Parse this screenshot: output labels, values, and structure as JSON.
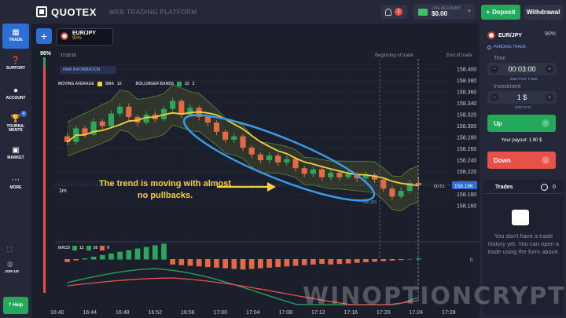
{
  "header": {
    "logo": "QUOTEX",
    "subtitle": "WEB TRADING PLATFORM",
    "notif_count": "1",
    "account_label": "LIVE ACCOUNT",
    "account_value": "$0.00",
    "deposit_label": "Deposit",
    "withdraw_label": "Withdrawal"
  },
  "sidebar": {
    "items": [
      {
        "label": "TRADE",
        "icon": "chart-icon"
      },
      {
        "label": "SUPPORT",
        "icon": "question-icon"
      },
      {
        "label": "ACCOUNT",
        "icon": "user-icon"
      },
      {
        "label": "TOURNA-\nMENTS",
        "icon": "trophy-icon"
      },
      {
        "label": "MARKET",
        "icon": "market-icon"
      },
      {
        "label": "MORE",
        "icon": "more-icon"
      }
    ],
    "tournaments_badge": "4",
    "join_label": "JOIN US",
    "help_label": "Help"
  },
  "chart": {
    "asset_name": "EUR/JPY",
    "asset_pct": "90%",
    "pct_left": "96%",
    "time_label": "17:23:10",
    "pair_info": "PAIR INFORMATION",
    "indicators": [
      "MOVING AVERAGE",
      "SMA",
      "10",
      "BOLLINGER BANDS",
      "22",
      "2"
    ],
    "macd_label": "MACD",
    "macd_values": [
      "12",
      "26",
      "9"
    ],
    "timeframe": "1m",
    "annotation": "The trend is moving with almost no pullbacks.",
    "beginning_label": "Beginning of trade",
    "end_label": "End of trade",
    "current_time": "00:51",
    "current_price": "158.196",
    "marker_price": "158.183",
    "colors": {
      "up": "#2ea55d",
      "down": "#e36a45",
      "sma": "#f2d13a",
      "ellipse": "#3a9be8",
      "annot": "#f4d03f"
    }
  },
  "chart_data": {
    "type": "candlestick",
    "price_ticks": [
      "158.400",
      "158.380",
      "158.360",
      "158.340",
      "158.320",
      "158.300",
      "158.280",
      "158.260",
      "158.240",
      "158.220",
      "158.200",
      "158.180",
      "158.160"
    ],
    "time_ticks": [
      "16:40",
      "16:44",
      "16:48",
      "16:52",
      "16:56",
      "17:00",
      "17:04",
      "17:08",
      "17:12",
      "17:16",
      "17:20",
      "17:24",
      "17:28"
    ],
    "candles": [
      {
        "o": 158.282,
        "c": 158.272,
        "h": 158.288,
        "l": 158.266
      },
      {
        "o": 158.272,
        "c": 158.296,
        "h": 158.3,
        "l": 158.268
      },
      {
        "o": 158.296,
        "c": 158.285,
        "h": 158.3,
        "l": 158.28
      },
      {
        "o": 158.285,
        "c": 158.308,
        "h": 158.314,
        "l": 158.282
      },
      {
        "o": 158.308,
        "c": 158.3,
        "h": 158.312,
        "l": 158.294
      },
      {
        "o": 158.3,
        "c": 158.322,
        "h": 158.328,
        "l": 158.296
      },
      {
        "o": 158.322,
        "c": 158.334,
        "h": 158.34,
        "l": 158.316
      },
      {
        "o": 158.334,
        "c": 158.316,
        "h": 158.34,
        "l": 158.31
      },
      {
        "o": 158.316,
        "c": 158.306,
        "h": 158.32,
        "l": 158.3
      },
      {
        "o": 158.306,
        "c": 158.32,
        "h": 158.326,
        "l": 158.302
      },
      {
        "o": 158.32,
        "c": 158.312,
        "h": 158.326,
        "l": 158.306
      },
      {
        "o": 158.312,
        "c": 158.33,
        "h": 158.336,
        "l": 158.308
      },
      {
        "o": 158.33,
        "c": 158.344,
        "h": 158.35,
        "l": 158.326
      },
      {
        "o": 158.344,
        "c": 158.32,
        "h": 158.348,
        "l": 158.314
      },
      {
        "o": 158.32,
        "c": 158.332,
        "h": 158.338,
        "l": 158.316
      },
      {
        "o": 158.332,
        "c": 158.316,
        "h": 158.336,
        "l": 158.31
      },
      {
        "o": 158.316,
        "c": 158.306,
        "h": 158.32,
        "l": 158.3
      },
      {
        "o": 158.306,
        "c": 158.29,
        "h": 158.31,
        "l": 158.284
      },
      {
        "o": 158.29,
        "c": 158.276,
        "h": 158.294,
        "l": 158.27
      },
      {
        "o": 158.276,
        "c": 158.282,
        "h": 158.288,
        "l": 158.27
      },
      {
        "o": 158.282,
        "c": 158.262,
        "h": 158.286,
        "l": 158.256
      },
      {
        "o": 158.262,
        "c": 158.25,
        "h": 158.266,
        "l": 158.244
      },
      {
        "o": 158.25,
        "c": 158.24,
        "h": 158.254,
        "l": 158.234
      },
      {
        "o": 158.24,
        "c": 158.248,
        "h": 158.254,
        "l": 158.234
      },
      {
        "o": 158.248,
        "c": 158.236,
        "h": 158.252,
        "l": 158.23
      },
      {
        "o": 158.236,
        "c": 158.242,
        "h": 158.248,
        "l": 158.23
      },
      {
        "o": 158.242,
        "c": 158.226,
        "h": 158.246,
        "l": 158.22
      },
      {
        "o": 158.226,
        "c": 158.216,
        "h": 158.23,
        "l": 158.21
      },
      {
        "o": 158.216,
        "c": 158.224,
        "h": 158.23,
        "l": 158.21
      },
      {
        "o": 158.224,
        "c": 158.21,
        "h": 158.228,
        "l": 158.204
      },
      {
        "o": 158.21,
        "c": 158.218,
        "h": 158.224,
        "l": 158.204
      },
      {
        "o": 158.218,
        "c": 158.21,
        "h": 158.222,
        "l": 158.204
      },
      {
        "o": 158.21,
        "c": 158.216,
        "h": 158.222,
        "l": 158.206
      },
      {
        "o": 158.216,
        "c": 158.208,
        "h": 158.22,
        "l": 158.202
      },
      {
        "o": 158.208,
        "c": 158.214,
        "h": 158.22,
        "l": 158.204
      },
      {
        "o": 158.214,
        "c": 158.206,
        "h": 158.218,
        "l": 158.2
      },
      {
        "o": 158.206,
        "c": 158.19,
        "h": 158.21,
        "l": 158.184
      },
      {
        "o": 158.19,
        "c": 158.176,
        "h": 158.194,
        "l": 158.17
      },
      {
        "o": 158.176,
        "c": 158.186,
        "h": 158.192,
        "l": 158.172
      },
      {
        "o": 158.186,
        "c": 158.2,
        "h": 158.206,
        "l": 158.182
      },
      {
        "o": 158.2,
        "c": 158.196,
        "h": 158.21,
        "l": 158.19
      }
    ]
  },
  "right_panel": {
    "asset_name": "EUR/JPY",
    "asset_pct": "90%",
    "pending_label": "PENDING TRADE",
    "time_label": "Time",
    "time_value": "00:03:00",
    "time_sub": "SWITCH TIME",
    "investment_label": "Investment",
    "investment_value": "1 $",
    "investment_sub": "SWITCH",
    "up_label": "Up",
    "payout_label": "Your payout: 1.90 $",
    "down_label": "Down",
    "trades_label": "Trades",
    "trades_count": "0",
    "trades_empty": "You don't have a trade history yet. You can open a trade using the form above."
  },
  "watermark": "WINOPTIONCRYPTO.COM"
}
